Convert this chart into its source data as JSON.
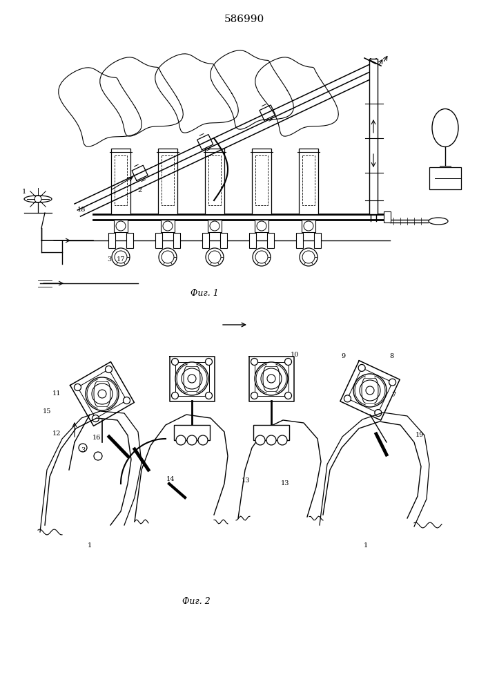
{
  "title": "586990",
  "fig1_label": "Фиг. 1",
  "fig2_label": "Фиг. 2",
  "bg_color": "#ffffff",
  "line_color": "#000000"
}
